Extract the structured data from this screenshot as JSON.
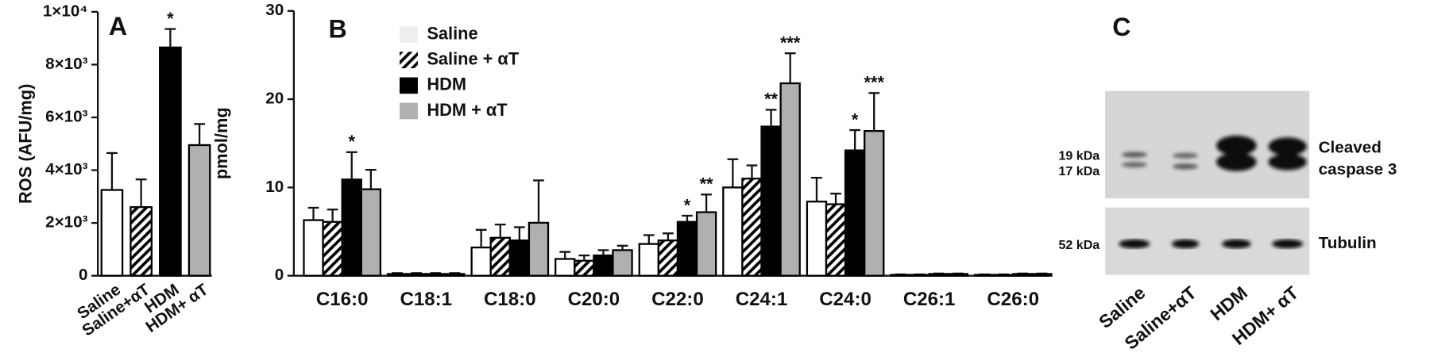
{
  "chart_data": [
    {
      "type": "bar",
      "panel_label": "A",
      "ylabel": "ROS (AFU/mg)",
      "categories": [
        "Saline",
        "Saline+αT",
        "HDM",
        "HDM+ αT"
      ],
      "values": [
        3250,
        2600,
        8650,
        4950
      ],
      "errors": [
        1400,
        1050,
        700,
        800
      ],
      "colors": [
        "#ffffff",
        "#ffffff",
        "#000000",
        "#b0b0b0"
      ],
      "patterns": [
        null,
        "diagonal-hatch",
        null,
        null
      ],
      "significance": [
        null,
        null,
        "*",
        null
      ],
      "ylim": [
        0,
        10000
      ],
      "yticks": [
        0,
        {
          "value": 2000,
          "label": "2×10³"
        },
        {
          "value": 4000,
          "label": "4×10³"
        },
        {
          "value": 6000,
          "label": "6×10³"
        },
        {
          "value": 8000,
          "label": "8×10³"
        },
        {
          "value": 10000,
          "label": "1×10⁴"
        }
      ]
    },
    {
      "type": "grouped_bar",
      "panel_label": "B",
      "ylabel": "pmol/mg",
      "categories": [
        "C16:0",
        "C18:1",
        "C18:0",
        "C20:0",
        "C22:0",
        "C24:1",
        "C24:0",
        "C26:1",
        "C26:0"
      ],
      "series": [
        {
          "name": "Saline",
          "color": "#ffffff",
          "values": [
            6.3,
            0.2,
            3.2,
            1.9,
            3.6,
            10.0,
            8.4,
            0.1,
            0.1
          ],
          "errors": [
            1.4,
            0.1,
            2.0,
            0.8,
            1.0,
            3.2,
            2.7,
            0.05,
            0.05
          ],
          "significance": [
            null,
            null,
            null,
            null,
            null,
            null,
            null,
            null,
            null
          ]
        },
        {
          "name": "Saline + αT",
          "color": "#ffffff",
          "pattern": "diagonal-hatch",
          "values": [
            6.1,
            0.2,
            4.3,
            1.7,
            4.0,
            11.0,
            8.1,
            0.1,
            0.1
          ],
          "errors": [
            1.4,
            0.1,
            1.5,
            0.6,
            0.8,
            1.5,
            1.2,
            0.05,
            0.05
          ],
          "significance": [
            null,
            null,
            null,
            null,
            null,
            null,
            null,
            null,
            null
          ]
        },
        {
          "name": "HDM",
          "color": "#000000",
          "values": [
            10.9,
            0.2,
            4.0,
            2.3,
            6.1,
            16.9,
            14.2,
            0.2,
            0.2
          ],
          "errors": [
            3.1,
            0.1,
            1.5,
            0.6,
            0.7,
            1.9,
            2.3,
            0.05,
            0.05
          ],
          "significance": [
            "*",
            null,
            null,
            null,
            "*",
            "**",
            "*",
            null,
            null
          ]
        },
        {
          "name": "HDM + αT",
          "color": "#b0b0b0",
          "values": [
            9.8,
            0.2,
            6.0,
            2.9,
            7.2,
            21.8,
            16.4,
            0.2,
            0.2
          ],
          "errors": [
            2.2,
            0.1,
            4.8,
            0.5,
            2.0,
            3.4,
            4.3,
            0.05,
            0.05
          ],
          "significance": [
            null,
            null,
            null,
            null,
            "**",
            "***",
            "***",
            null,
            null
          ]
        }
      ],
      "ylim": [
        0,
        30
      ],
      "yticks": [
        0,
        10,
        20,
        30
      ]
    }
  ],
  "blot": {
    "panel_label": "C",
    "upper_markers": [
      "19 kDa",
      "17 kDa"
    ],
    "upper_target": [
      "Cleaved",
      "caspase 3"
    ],
    "lower_marker": "52 kDa",
    "lower_target": "Tubulin",
    "lanes": [
      "Saline",
      "Saline+αT",
      "HDM",
      "HDM+ αT"
    ]
  }
}
